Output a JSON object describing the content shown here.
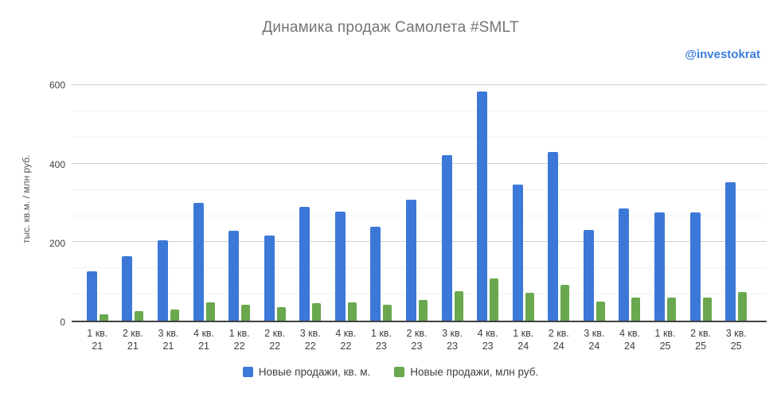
{
  "watermark": {
    "text": "@investokrat",
    "color": "#3b7ddd"
  },
  "colors": {
    "series_blue": "#3c78d8",
    "series_green": "#6aa84f",
    "title_text": "#757575",
    "axis_text": "#3c4043",
    "grid_major": "#cfcfcf",
    "grid_minor": "#f1f1f1",
    "axis_line": "#424242"
  },
  "chart_data": {
    "type": "bar",
    "title": "Динамика продаж Самолета #SMLT",
    "ylabel": "тыс. кв.м. / млн руб.",
    "xlabel": "",
    "ylim": [
      0,
      625
    ],
    "y_ticks": [
      0,
      200,
      400,
      600
    ],
    "minor_gridlines": [
      66.67,
      133.33,
      266.67,
      333.33,
      466.67,
      533.33
    ],
    "grid": true,
    "legend_position": "bottom",
    "categories": [
      "1 кв. 21",
      "2 кв. 21",
      "3 кв. 21",
      "4 кв. 21",
      "1 кв. 22",
      "2 кв. 22",
      "3 кв. 22",
      "4 кв. 22",
      "1 кв. 23",
      "2 кв. 23",
      "3 кв. 23",
      "4 кв. 23",
      "1 кв. 24",
      "2 кв. 24",
      "3 кв. 24",
      "4 кв. 24",
      "1 кв. 25",
      "2 кв. 25",
      "3 кв. 25"
    ],
    "series": [
      {
        "name": "Новые продажи, кв. м.",
        "color": "#3c78d8",
        "values": [
          125,
          165,
          205,
          300,
          230,
          218,
          291,
          279,
          240,
          308,
          422,
          585,
          348,
          430,
          232,
          286,
          275,
          275,
          353
        ]
      },
      {
        "name": "Новые продажи, млн руб.",
        "color": "#6aa84f",
        "values": [
          17,
          25,
          29,
          47,
          40,
          35,
          45,
          47,
          40,
          53,
          76,
          108,
          72,
          92,
          48,
          59,
          58,
          59,
          74
        ]
      }
    ]
  }
}
